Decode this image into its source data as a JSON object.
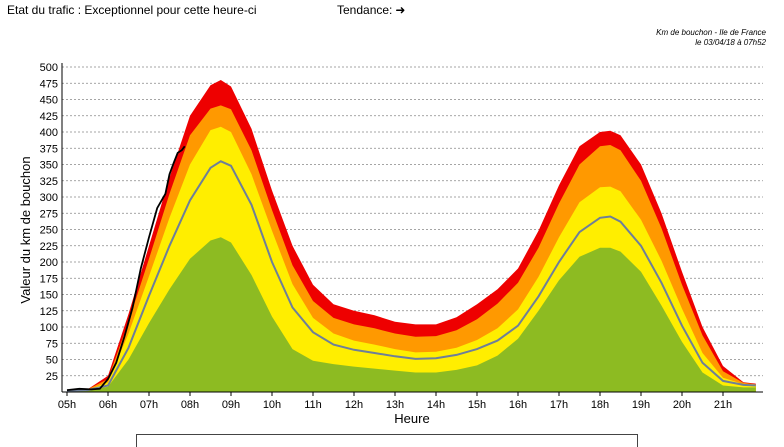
{
  "header": {
    "status_label": "Etat du trafic :",
    "status_value": "Exceptionnel pour cette heure-ci",
    "trend_label": "Tendance:",
    "trend_icon": "arrow-right-icon"
  },
  "credit": {
    "line1": "Km de bouchon - Ile de France",
    "line2": "le 03/04/18 à 07h52"
  },
  "chart_data": {
    "type": "area",
    "xlabel": "Heure",
    "ylabel": "Valeur du  km de bouchon",
    "xlim": [
      5,
      22
    ],
    "ylim": [
      0,
      500
    ],
    "y_ticks": [
      25,
      50,
      75,
      100,
      125,
      150,
      175,
      200,
      225,
      250,
      275,
      300,
      325,
      350,
      375,
      400,
      425,
      450,
      475,
      500
    ],
    "x_tick_labels": [
      "05h",
      "06h",
      "07h",
      "08h",
      "09h",
      "10h",
      "11h",
      "12h",
      "13h",
      "14h",
      "15h",
      "16h",
      "17h",
      "18h",
      "19h",
      "20h",
      "21h"
    ],
    "grid": true,
    "x": [
      5,
      5.5,
      6,
      6.5,
      7,
      7.5,
      8,
      8.5,
      8.75,
      9,
      9.5,
      10,
      10.5,
      11,
      11.5,
      12,
      12.5,
      13,
      13.5,
      14,
      14.5,
      15,
      15.5,
      16,
      16.5,
      17,
      17.5,
      18,
      18.25,
      18.5,
      19,
      19.5,
      20,
      20.5,
      21,
      21.5,
      21.8
    ],
    "bands": [
      {
        "color": "#ee0000",
        "values": [
          2,
          4,
          25,
          120,
          225,
          330,
          425,
          472,
          480,
          470,
          405,
          310,
          225,
          165,
          135,
          125,
          118,
          108,
          104,
          104,
          115,
          135,
          158,
          190,
          248,
          318,
          378,
          400,
          402,
          395,
          350,
          275,
          185,
          100,
          40,
          15,
          13
        ]
      },
      {
        "color": "#ff9900",
        "values": [
          2,
          4,
          20,
          108,
          205,
          305,
          395,
          436,
          441,
          435,
          372,
          280,
          195,
          140,
          114,
          104,
          98,
          90,
          85,
          86,
          95,
          112,
          136,
          168,
          222,
          290,
          350,
          378,
          380,
          372,
          325,
          252,
          165,
          87,
          32,
          14,
          12
        ]
      },
      {
        "color": "#ffee00",
        "values": [
          2,
          3,
          15,
          90,
          178,
          268,
          350,
          403,
          408,
          400,
          335,
          248,
          166,
          114,
          90,
          79,
          73,
          66,
          61,
          62,
          68,
          80,
          98,
          127,
          177,
          238,
          292,
          315,
          316,
          309,
          265,
          202,
          128,
          60,
          22,
          12,
          11
        ]
      },
      {
        "color": "#8dbb22",
        "values": [
          1,
          2,
          8,
          50,
          106,
          158,
          205,
          233,
          238,
          230,
          180,
          116,
          66,
          48,
          43,
          39,
          36,
          33,
          30,
          30,
          34,
          41,
          56,
          82,
          125,
          172,
          208,
          222,
          222,
          216,
          185,
          133,
          77,
          30,
          10,
          7,
          7
        ]
      }
    ],
    "series": [
      {
        "name": "",
        "color": "#6e7f99",
        "x": [
          5,
          5.5,
          6,
          6.5,
          7,
          7.5,
          8,
          8.5,
          8.75,
          9,
          9.5,
          10,
          10.5,
          11,
          11.5,
          12,
          12.5,
          13,
          13.5,
          14,
          14.5,
          15,
          15.5,
          16,
          16.5,
          17,
          17.5,
          18,
          18.25,
          18.5,
          19,
          19.5,
          20,
          20.5,
          21,
          21.5,
          21.8
        ],
        "values": [
          2,
          3,
          10,
          68,
          148,
          225,
          295,
          345,
          355,
          348,
          288,
          200,
          130,
          92,
          73,
          65,
          60,
          55,
          51,
          52,
          57,
          66,
          79,
          102,
          147,
          200,
          246,
          268,
          270,
          262,
          225,
          168,
          102,
          45,
          17,
          11,
          10
        ]
      },
      {
        "name": "",
        "color": "#000000",
        "x": [
          5,
          5.3,
          5.6,
          5.8,
          6,
          6.2,
          6.4,
          6.6,
          6.8,
          7,
          7.2,
          7.4,
          7.5,
          7.6,
          7.7,
          7.8,
          7.87
        ],
        "values": [
          3,
          5,
          4,
          5,
          20,
          45,
          85,
          130,
          190,
          238,
          283,
          305,
          335,
          352,
          368,
          372,
          378
        ]
      }
    ]
  }
}
